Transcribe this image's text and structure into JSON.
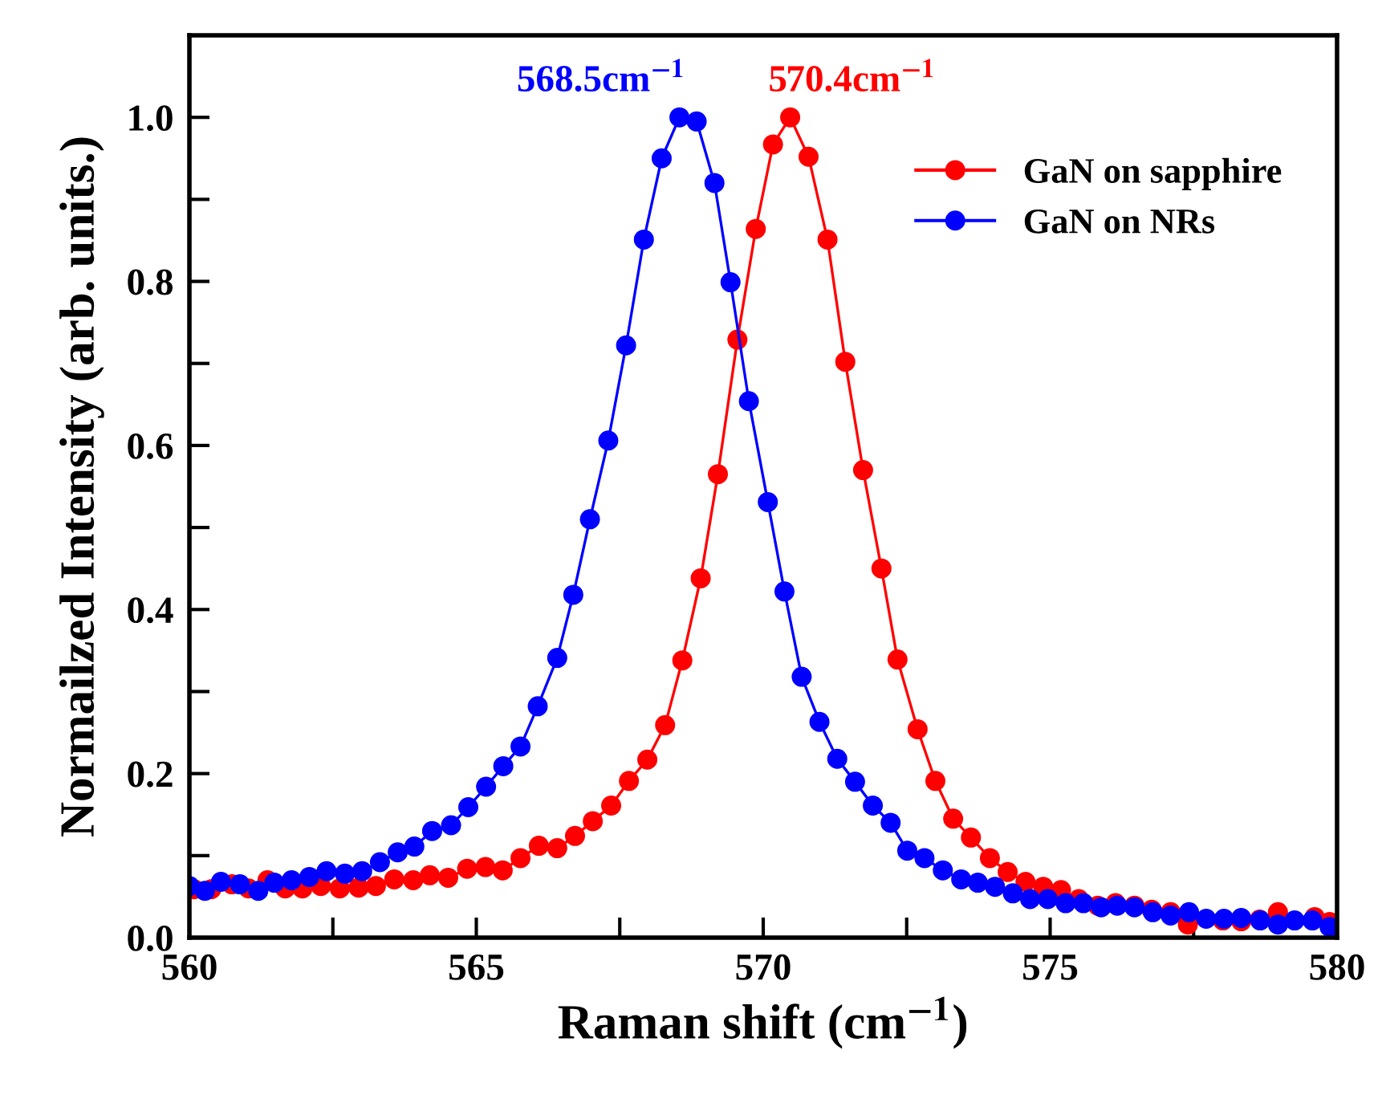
{
  "chart_data": {
    "type": "line",
    "xlabel": "Raman shift (cm$^{−1}$)",
    "ylabel": "Normailzed Intensity (arb. units.)",
    "xlim": [
      560,
      580
    ],
    "xticks": [
      560,
      {
        "value": 562.5,
        "label": null
      },
      565,
      {
        "value": 567.5,
        "label": null
      },
      570,
      {
        "value": 572.5,
        "label": null
      },
      575,
      {
        "value": 577.5,
        "label": null
      },
      580
    ],
    "ylim": [
      0,
      1.1
    ],
    "yticks": [
      {
        "value": 0,
        "label": "0.0"
      },
      {
        "value": 0.1,
        "label": null
      },
      {
        "value": 0.2,
        "label": "0.2"
      },
      {
        "value": 0.3,
        "label": null
      },
      {
        "value": 0.4,
        "label": "0.4"
      },
      {
        "value": 0.5,
        "label": null
      },
      {
        "value": 0.6,
        "label": "0.6"
      },
      {
        "value": 0.7,
        "label": null
      },
      {
        "value": 0.8,
        "label": "0.8"
      },
      {
        "value": 0.9,
        "label": null
      },
      {
        "value": 1.0,
        "label": "1.0"
      }
    ],
    "grid": false,
    "legend": "top right",
    "marker": "circle",
    "line_style": "solid",
    "annotations": [
      {
        "text": "568.5cm$^{−1}$",
        "x": 568.5,
        "y": 1.0
      },
      {
        "text": "570.4cm$^{−1}$",
        "x": 570.4,
        "y": 1.0
      }
    ],
    "series": [
      {
        "name": "GaN on sapphire",
        "color": "#ff0000",
        "x": [
          560.08,
          560.38,
          560.74,
          561.03,
          561.36,
          561.67,
          561.97,
          562.29,
          562.62,
          562.95,
          563.25,
          563.57,
          563.9,
          564.19,
          564.51,
          564.84,
          565.16,
          565.46,
          565.77,
          566.09,
          566.41,
          566.72,
          567.03,
          567.35,
          567.66,
          567.98,
          568.29,
          568.59,
          568.91,
          569.21,
          569.55,
          569.87,
          570.17,
          570.47,
          570.79,
          571.12,
          571.43,
          571.74,
          572.06,
          572.34,
          572.69,
          573.0,
          573.31,
          573.62,
          573.95,
          574.26,
          574.57,
          574.88,
          575.19,
          575.5,
          575.83,
          576.14,
          576.47,
          576.77,
          577.1,
          577.4,
          577.72,
          578.01,
          578.33,
          578.65,
          578.97,
          579.26,
          579.61,
          579.87
        ],
        "values": [
          0.059,
          0.059,
          0.065,
          0.06,
          0.07,
          0.06,
          0.06,
          0.063,
          0.06,
          0.061,
          0.063,
          0.071,
          0.07,
          0.076,
          0.073,
          0.084,
          0.086,
          0.082,
          0.097,
          0.112,
          0.109,
          0.124,
          0.142,
          0.161,
          0.191,
          0.217,
          0.259,
          0.338,
          0.438,
          0.565,
          0.729,
          0.864,
          0.967,
          1.0,
          0.952,
          0.851,
          0.702,
          0.57,
          0.45,
          0.339,
          0.254,
          0.191,
          0.145,
          0.122,
          0.097,
          0.08,
          0.068,
          0.062,
          0.058,
          0.047,
          0.039,
          0.042,
          0.039,
          0.034,
          0.031,
          0.016,
          null,
          0.021,
          0.02,
          0.022,
          0.031,
          null,
          0.025,
          0.019
        ]
      },
      {
        "name": "GaN on NRs",
        "color": "#0000ff",
        "x": [
          560.0,
          560.27,
          560.55,
          560.88,
          561.2,
          561.48,
          561.78,
          562.09,
          562.39,
          562.71,
          563.01,
          563.32,
          563.63,
          563.92,
          564.23,
          564.56,
          564.86,
          565.17,
          565.47,
          565.77,
          566.07,
          566.41,
          566.69,
          566.98,
          567.3,
          567.61,
          567.92,
          568.23,
          568.54,
          568.84,
          569.15,
          569.43,
          569.75,
          570.08,
          570.37,
          570.67,
          570.98,
          571.29,
          571.6,
          571.91,
          572.22,
          572.51,
          572.81,
          573.13,
          573.45,
          573.74,
          574.04,
          574.35,
          574.65,
          574.96,
          575.27,
          575.58,
          575.89,
          576.17,
          576.47,
          576.79,
          577.1,
          577.42,
          577.72,
          578.03,
          578.33,
          578.66,
          578.97,
          579.26,
          579.57,
          579.87
        ],
        "values": [
          0.063,
          0.057,
          0.068,
          0.065,
          0.057,
          0.067,
          0.07,
          0.074,
          0.081,
          0.078,
          0.081,
          0.092,
          0.104,
          0.111,
          0.13,
          0.137,
          0.159,
          0.184,
          0.209,
          0.233,
          0.282,
          0.341,
          0.418,
          0.51,
          0.606,
          0.722,
          0.851,
          0.95,
          1.0,
          0.995,
          0.92,
          0.799,
          0.654,
          0.531,
          0.422,
          0.318,
          0.263,
          0.218,
          0.19,
          0.161,
          0.14,
          0.106,
          0.097,
          0.082,
          0.071,
          0.067,
          0.062,
          0.054,
          0.047,
          0.047,
          0.042,
          0.042,
          0.037,
          0.039,
          0.037,
          0.031,
          0.027,
          0.031,
          0.023,
          0.023,
          0.024,
          0.021,
          0.016,
          0.021,
          0.021,
          0.013
        ]
      }
    ]
  }
}
